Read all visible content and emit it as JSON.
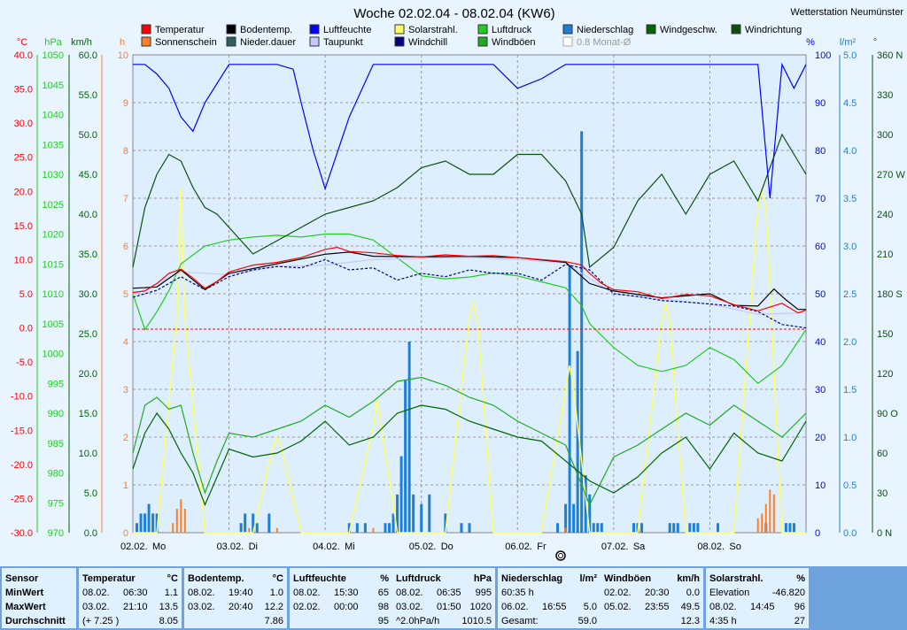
{
  "title": "Woche 02.02.04 - 08.02.04 (KW6)",
  "station": "Wetterstation Neumünster",
  "legend": [
    {
      "label": "Temperatur",
      "color": "#ff0000"
    },
    {
      "label": "Bodentemp.",
      "color": "#000000"
    },
    {
      "label": "Luftfeuchte",
      "color": "#0000ff"
    },
    {
      "label": "Solarstrahl.",
      "color": "#ffff66"
    },
    {
      "label": "Luftdruck",
      "color": "#22cc22"
    },
    {
      "label": "Niederschlag",
      "color": "#1e7fd6"
    },
    {
      "label": "Windgeschw.",
      "color": "#006400"
    },
    {
      "label": "Windrichtung",
      "color": "#0b4f0b"
    },
    {
      "label": "Sonnenschein",
      "color": "#ff7f27"
    },
    {
      "label": "Nieder.dauer",
      "color": "#2f5f5f"
    },
    {
      "label": "Taupunkt",
      "color": "#c8c8ff"
    },
    {
      "label": "Windchill",
      "color": "#000080"
    },
    {
      "label": "Windböen",
      "color": "#22aa22"
    },
    {
      "label": "0.8 Monat-Ø",
      "color": "#ffffff",
      "disabled": true
    }
  ],
  "axis_units": {
    "temp": "°C",
    "pressure": "hPa",
    "wind": "km/h",
    "hours": "h",
    "humidity": "%",
    "rain": "l/m²",
    "dir": "°"
  },
  "axes": {
    "temp": [
      "40.0",
      "35.0",
      "30.0",
      "25.0",
      "20.0",
      "15.0",
      "10.0",
      "5.0",
      "0.0",
      "-5.0",
      "-10.0",
      "-15.0",
      "-20.0",
      "-25.0",
      "-30.0"
    ],
    "pressure": [
      "1050",
      "1045",
      "1040",
      "1035",
      "1030",
      "1025",
      "1020",
      "1015",
      "1010",
      "1005",
      "1000",
      "995",
      "990",
      "985",
      "980",
      "975",
      "970"
    ],
    "wind": [
      "60.0",
      "55.0",
      "50.0",
      "45.0",
      "40.0",
      "35.0",
      "30.0",
      "25.0",
      "20.0",
      "15.0",
      "10.0",
      "5.0",
      "0.0"
    ],
    "hours": [
      "10",
      "9",
      "8",
      "7",
      "6",
      "5",
      "4",
      "3",
      "2",
      "1",
      "0"
    ],
    "humidity": [
      "100",
      "90",
      "80",
      "70",
      "60",
      "50",
      "40",
      "30",
      "20",
      "10",
      "0"
    ],
    "rain": [
      "5.0",
      "4.5",
      "4.0",
      "3.5",
      "3.0",
      "2.5",
      "2.0",
      "1.5",
      "1.0",
      "0.5",
      "0.0"
    ],
    "dir": [
      "360 N",
      "330",
      "300",
      "270 W",
      "240",
      "210",
      "180 S",
      "150",
      "120",
      "90 O",
      "60",
      "30",
      "0 N"
    ]
  },
  "days": [
    {
      "date": "02.02.",
      "day": "Mo"
    },
    {
      "date": "03.02.",
      "day": "Di"
    },
    {
      "date": "04.02.",
      "day": "Mi"
    },
    {
      "date": "05.02.",
      "day": "Do"
    },
    {
      "date": "06.02.",
      "day": "Fr"
    },
    {
      "date": "07.02.",
      "day": "Sa"
    },
    {
      "date": "08.02.",
      "day": "So"
    }
  ],
  "chart_data": {
    "type": "line",
    "title": "Woche 02.02.04 - 08.02.04 (KW6)",
    "x_unit": "hours since 02.02. 00:00",
    "xlim": [
      0,
      168
    ],
    "series": [
      {
        "name": "Temperatur",
        "unit": "°C",
        "color": "#ff0000",
        "x": [
          0,
          3,
          6,
          9,
          12,
          15,
          18,
          21,
          24,
          30,
          36,
          42,
          48,
          51,
          54,
          60,
          66,
          72,
          78,
          84,
          90,
          96,
          102,
          108,
          112,
          114,
          117,
          120,
          126,
          132,
          138,
          144,
          150,
          156,
          162,
          166,
          168
        ],
        "y": [
          5.2,
          5.4,
          6.5,
          8.0,
          8.6,
          7.3,
          5.8,
          6.8,
          8.2,
          9.2,
          9.6,
          10.3,
          11.5,
          11.8,
          11.2,
          11.0,
          10.6,
          10.4,
          10.7,
          10.5,
          10.6,
          10.3,
          10.0,
          9.7,
          9.2,
          8.0,
          6.5,
          5.6,
          5.3,
          4.3,
          4.9,
          4.7,
          3.4,
          2.5,
          3.6,
          2.2,
          2.6
        ]
      },
      {
        "name": "Bodentemp.",
        "unit": "°C",
        "color": "#000000",
        "x": [
          0,
          6,
          12,
          18,
          24,
          36,
          48,
          54,
          60,
          72,
          84,
          96,
          108,
          114,
          120,
          132,
          144,
          150,
          156,
          160,
          163,
          166,
          168
        ],
        "y": [
          5.8,
          6.0,
          8.5,
          5.6,
          8.0,
          9.4,
          10.8,
          11.1,
          10.5,
          10.4,
          10.5,
          10.3,
          9.6,
          6.5,
          5.4,
          4.4,
          5.0,
          3.3,
          3.2,
          5.7,
          4.1,
          2.7,
          2.7
        ]
      },
      {
        "name": "Luftfeuchte",
        "unit": "%",
        "color": "#0000ff",
        "x": [
          0,
          3,
          6,
          9,
          12,
          15,
          18,
          24,
          30,
          36,
          40,
          42,
          45,
          48,
          54,
          60,
          66,
          72,
          78,
          84,
          90,
          96,
          102,
          108,
          114,
          120,
          130,
          138,
          144,
          150,
          156,
          159,
          162,
          165,
          168
        ],
        "y": [
          98,
          98,
          96,
          93,
          87,
          84,
          90,
          98,
          98,
          98,
          97,
          90,
          80,
          72,
          87,
          98,
          98,
          98,
          98,
          98,
          98,
          93,
          95,
          98,
          98,
          98,
          98,
          98,
          98,
          98,
          98,
          70,
          98,
          93,
          98
        ]
      },
      {
        "name": "Luftdruck",
        "unit": "hPa",
        "color": "#22cc22",
        "x": [
          0,
          3,
          6,
          9,
          12,
          18,
          24,
          30,
          36,
          42,
          48,
          54,
          60,
          66,
          72,
          78,
          84,
          90,
          96,
          102,
          108,
          112,
          114,
          120,
          126,
          132,
          138,
          144,
          150,
          156,
          162,
          168
        ],
        "y": [
          1010.0,
          1004.0,
          1007.0,
          1010.5,
          1015.0,
          1018.0,
          1019.0,
          1019.5,
          1019.8,
          1019.5,
          1020.0,
          1020.0,
          1019.0,
          1016.0,
          1013.0,
          1012.5,
          1012.8,
          1013.5,
          1013.0,
          1012.0,
          1011.0,
          1008.0,
          1005.0,
          1001.0,
          998.0,
          997.0,
          998.0,
          1001.0,
          999.0,
          995.0,
          998.0,
          1004.0
        ]
      },
      {
        "name": "Taupunkt",
        "unit": "°C",
        "color": "#c8c8ff",
        "x": [
          0,
          12,
          24,
          36,
          48,
          60,
          72,
          84,
          96,
          108,
          120,
          132,
          144,
          156,
          168
        ],
        "y": [
          4.8,
          8.2,
          7.8,
          9.0,
          9.2,
          10.0,
          10.2,
          10.3,
          10.0,
          9.5,
          5.0,
          4.2,
          3.5,
          2.0,
          2.2
        ]
      },
      {
        "name": "Windchill",
        "unit": "°C",
        "color": "#000080",
        "x": [
          0,
          6,
          12,
          18,
          24,
          30,
          36,
          42,
          48,
          54,
          60,
          66,
          72,
          78,
          84,
          90,
          96,
          102,
          108,
          114,
          120,
          126,
          132,
          138,
          144,
          150,
          156,
          162,
          168
        ],
        "y": [
          4.5,
          5.5,
          7.5,
          5.6,
          7.5,
          8.5,
          9.0,
          8.8,
          10.0,
          8.5,
          8.8,
          7.0,
          8.0,
          7.5,
          8.5,
          8.0,
          8.0,
          7.0,
          9.3,
          8.5,
          5.0,
          4.6,
          4.0,
          3.8,
          3.5,
          3.2,
          2.4,
          0.5,
          0.0
        ]
      },
      {
        "name": "Windgeschw.",
        "unit": "km/h",
        "color": "#006400",
        "x": [
          0,
          3,
          6,
          9,
          12,
          15,
          18,
          21,
          24,
          30,
          36,
          42,
          48,
          54,
          60,
          66,
          72,
          78,
          84,
          90,
          96,
          102,
          108,
          114,
          120,
          126,
          132,
          138,
          144,
          150,
          156,
          162,
          168
        ],
        "y": [
          8.0,
          12.5,
          15.0,
          13.0,
          10.0,
          7.5,
          3.5,
          7.0,
          10.5,
          9.5,
          10.0,
          11.5,
          14.0,
          11.0,
          12.0,
          15.0,
          16.0,
          15.5,
          14.0,
          13.0,
          12.0,
          11.5,
          9.0,
          6.5,
          5.0,
          7.0,
          10.0,
          12.0,
          8.0,
          12.5,
          10.0,
          9.0,
          14.0
        ]
      },
      {
        "name": "Windböen",
        "unit": "km/h",
        "color": "#22aa22",
        "x": [
          0,
          3,
          6,
          9,
          12,
          15,
          18,
          21,
          24,
          30,
          36,
          42,
          48,
          54,
          60,
          66,
          72,
          78,
          84,
          90,
          96,
          102,
          108,
          114,
          120,
          126,
          132,
          138,
          144,
          150,
          156,
          162,
          168
        ],
        "y": [
          10.0,
          16.0,
          17.0,
          15.5,
          16.0,
          10.0,
          5.0,
          9.0,
          12.5,
          12.0,
          13.0,
          14.0,
          16.0,
          14.5,
          16.5,
          19.0,
          19.5,
          18.5,
          17.0,
          16.0,
          14.0,
          12.5,
          11.0,
          3.5,
          9.5,
          11.0,
          13.0,
          15.0,
          13.5,
          16.0,
          14.0,
          12.0,
          15.0
        ]
      },
      {
        "name": "Windrichtung",
        "unit": "°",
        "color": "#0b4f0b",
        "x": [
          0,
          3,
          6,
          9,
          12,
          15,
          18,
          21,
          24,
          30,
          36,
          42,
          48,
          54,
          60,
          66,
          72,
          78,
          84,
          90,
          96,
          102,
          108,
          112,
          114,
          120,
          126,
          132,
          138,
          144,
          150,
          156,
          162,
          168
        ],
        "y": [
          200,
          245,
          270,
          285,
          280,
          260,
          245,
          240,
          230,
          210,
          220,
          230,
          240,
          245,
          250,
          260,
          275,
          280,
          270,
          270,
          285,
          285,
          265,
          240,
          200,
          215,
          250,
          270,
          240,
          270,
          280,
          250,
          300,
          270
        ]
      },
      {
        "name": "Solarstrahl.",
        "unit": "%",
        "color": "#ffff66",
        "x": [
          0,
          6,
          11,
          12,
          13,
          18,
          24,
          30,
          35,
          36,
          37,
          42,
          48,
          54,
          60,
          61,
          62,
          66,
          72,
          78,
          84,
          85,
          86,
          90,
          96,
          102,
          108,
          109,
          110,
          114,
          120,
          126,
          132,
          133,
          134,
          138,
          144,
          150,
          156,
          157,
          158,
          162,
          168
        ],
        "y": [
          0,
          0,
          45,
          72,
          45,
          0,
          0,
          0,
          18,
          20,
          18,
          0,
          0,
          0,
          22,
          28,
          22,
          0,
          0,
          0,
          45,
          48,
          45,
          0,
          0,
          0,
          30,
          35,
          30,
          0,
          0,
          0,
          44,
          48,
          44,
          0,
          0,
          0,
          68,
          72,
          68,
          0,
          0
        ]
      },
      {
        "name": "Niederschlag",
        "unit": "l/m²",
        "color": "#1e7fd6",
        "x": [
          1,
          2,
          3,
          4,
          5,
          6,
          27,
          28,
          30,
          31,
          34,
          54,
          56,
          58,
          63,
          64,
          65,
          66,
          67,
          68,
          69,
          70,
          72,
          74,
          78,
          82,
          84,
          106,
          108,
          109,
          110,
          111,
          112,
          113,
          114,
          115,
          116,
          117,
          125,
          126,
          127,
          134,
          135,
          136,
          139,
          140,
          141,
          146,
          158,
          163,
          164,
          165
        ],
        "y": [
          0.1,
          0.2,
          0.2,
          0.3,
          0.2,
          0.2,
          0.1,
          0.2,
          0.2,
          0.1,
          0.2,
          0.1,
          0.1,
          0.1,
          0.1,
          0.1,
          0.2,
          0.4,
          0.8,
          1.6,
          2.0,
          0.4,
          0.3,
          0.4,
          0.2,
          0.1,
          0.1,
          0.1,
          0.3,
          2.8,
          0.3,
          1.9,
          4.2,
          0.6,
          0.4,
          0.1,
          0.1,
          0.1,
          0.1,
          0.1,
          0.1,
          0.1,
          0.1,
          0.1,
          0.1,
          0.1,
          0.1,
          0.1,
          0.1,
          0.1,
          0.1,
          0.1
        ]
      },
      {
        "name": "Sonnenschein",
        "unit": "h",
        "color": "#ff7f27",
        "x": [
          10,
          11,
          12,
          13,
          29,
          36,
          60,
          108,
          156,
          157,
          158,
          159,
          160
        ],
        "y": [
          0.2,
          0.5,
          0.7,
          0.5,
          0.1,
          0.1,
          0.1,
          0.1,
          0.3,
          0.4,
          0.6,
          0.9,
          0.8
        ]
      }
    ]
  },
  "stats": {
    "sensors": {
      "header": "Sensor",
      "min": "MinWert",
      "max": "MaxWert",
      "avg": "Durchschnitt"
    },
    "columns": [
      {
        "name": "Temperatur",
        "unit": "°C",
        "rows": [
          [
            "08.02.",
            "06:30",
            "1.1"
          ],
          [
            "03.02.",
            "21:10",
            "13.5"
          ],
          [
            "",
            "(+ 7.25 )",
            "8.05"
          ]
        ]
      },
      {
        "name": "Bodentemp.",
        "unit": "°C",
        "rows": [
          [
            "08.02.",
            "19:40",
            "1.0"
          ],
          [
            "03.02.",
            "20:40",
            "12.2"
          ],
          [
            "",
            "",
            "7.86"
          ]
        ]
      },
      {
        "name": "Luftfeuchte",
        "unit": "%",
        "rows": [
          [
            "08.02.",
            "15:30",
            "65"
          ],
          [
            "02.02.",
            "00:00",
            "98"
          ],
          [
            "",
            "",
            "95"
          ]
        ]
      },
      {
        "name": "Luftdruck",
        "unit": "hPa",
        "rows": [
          [
            "08.02.",
            "06:35",
            "995"
          ],
          [
            "03.02.",
            "01:50",
            "1020"
          ],
          [
            "",
            "^2.0hPa/h",
            "1010.5"
          ]
        ]
      },
      {
        "name": "Niederschlag",
        "unit": "l/m²",
        "rows": [
          [
            "60:35 h",
            "",
            ""
          ],
          [
            "06.02.",
            "16:55",
            "5.0"
          ],
          [
            "Gesamt:",
            "",
            "59.0"
          ]
        ]
      },
      {
        "name": "Windböen",
        "unit": "km/h",
        "rows": [
          [
            "02.02.",
            "20:30",
            "0.0"
          ],
          [
            "05.02.",
            "23:55",
            "49.5"
          ],
          [
            "",
            "",
            "12.3"
          ]
        ]
      },
      {
        "name": "Solarstrahl.",
        "unit": "%",
        "rows": [
          [
            "Elevation",
            "",
            "-46.820"
          ],
          [
            "08.02.",
            "14:45",
            "96"
          ],
          [
            "4:35 h",
            "",
            "27"
          ]
        ]
      }
    ]
  }
}
